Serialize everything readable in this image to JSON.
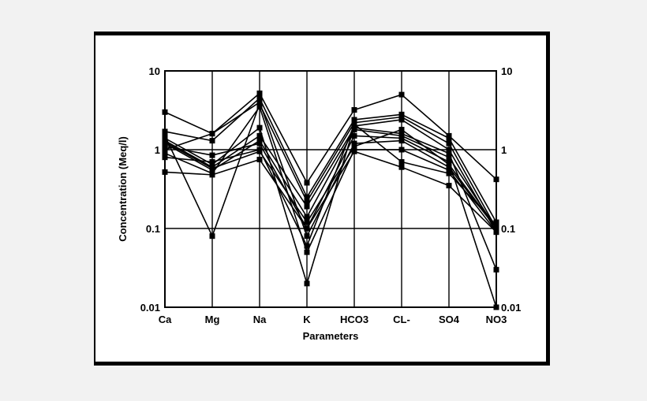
{
  "chart_data": {
    "type": "line",
    "title": "",
    "xlabel": "Parameters",
    "ylabel": "Concentration (Meq/l)",
    "yscale": "log",
    "ylim": [
      0.01,
      10
    ],
    "yticks": [
      {
        "value": 10,
        "label": "10"
      },
      {
        "value": 1,
        "label": "1"
      },
      {
        "value": 0.1,
        "label": "0.1"
      },
      {
        "value": 0.01,
        "label": "0.01"
      }
    ],
    "grid": true,
    "legend": "none",
    "categories": [
      "Ca",
      "Mg",
      "Na",
      "K",
      "HCO3",
      "CL-",
      "SO4",
      "NO3"
    ],
    "series": [
      {
        "values": [
          3.0,
          1.6,
          5.2,
          0.38,
          3.2,
          5.0,
          1.5,
          0.42
        ]
      },
      {
        "values": [
          1.7,
          1.3,
          4.5,
          0.25,
          2.4,
          2.8,
          1.4,
          0.12
        ]
      },
      {
        "values": [
          1.5,
          0.08,
          3.8,
          0.22,
          2.2,
          2.6,
          1.2,
          0.1
        ]
      },
      {
        "values": [
          1.4,
          0.65,
          1.9,
          0.02,
          2.0,
          2.4,
          1.0,
          0.09
        ]
      },
      {
        "values": [
          1.3,
          0.6,
          1.5,
          0.19,
          1.9,
          1.6,
          0.9,
          0.03
        ]
      },
      {
        "values": [
          1.2,
          0.55,
          1.3,
          0.14,
          1.8,
          1.5,
          0.8,
          0.1
        ]
      },
      {
        "values": [
          1.1,
          0.85,
          1.2,
          0.1,
          1.5,
          1.4,
          0.7,
          0.01
        ]
      },
      {
        "values": [
          1.0,
          1.6,
          4.0,
          0.08,
          1.2,
          1.3,
          0.6,
          0.1
        ]
      },
      {
        "values": [
          0.9,
          0.5,
          3.5,
          0.05,
          1.0,
          1.0,
          0.55,
          0.09
        ]
      },
      {
        "values": [
          0.8,
          0.7,
          1.0,
          0.06,
          2.1,
          0.7,
          0.5,
          0.11
        ]
      },
      {
        "values": [
          0.52,
          0.48,
          0.75,
          0.1,
          0.95,
          0.6,
          0.35,
          0.09
        ]
      },
      {
        "values": [
          1.25,
          0.58,
          0.95,
          0.12,
          1.1,
          1.8,
          0.65,
          0.1
        ]
      }
    ]
  }
}
